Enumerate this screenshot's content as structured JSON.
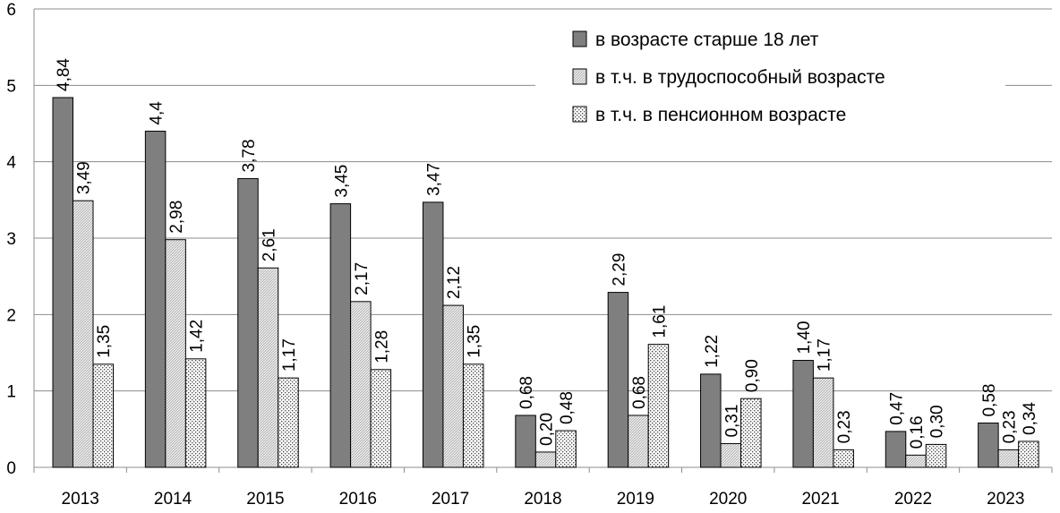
{
  "chart_data": {
    "type": "bar",
    "title": "",
    "xlabel": "",
    "ylabel": "",
    "ylim": [
      0,
      6
    ],
    "yticks": [
      0,
      1,
      2,
      3,
      4,
      5,
      6
    ],
    "grid": true,
    "legend_position": "top-right",
    "categories": [
      "2013",
      "2014",
      "2015",
      "2016",
      "2017",
      "2018",
      "2019",
      "2020",
      "2021",
      "2022",
      "2023"
    ],
    "series": [
      {
        "name": "в возрасте старше 18 лет",
        "fill": "dark-gray",
        "color": "#7f7f7f",
        "values": [
          4.84,
          4.4,
          3.78,
          3.45,
          3.47,
          0.68,
          2.29,
          1.22,
          1.4,
          0.47,
          0.58
        ],
        "labels": [
          "4,84",
          "4,4",
          "3,78",
          "3,45",
          "3,47",
          "0,68",
          "2,29",
          "1,22",
          "1,40",
          "0,47",
          "0,58"
        ]
      },
      {
        "name": "в т.ч. в трудоспособный возрасте",
        "fill": "hatched-gray",
        "color": "#c8c8c8",
        "values": [
          3.49,
          2.98,
          2.61,
          2.17,
          2.12,
          0.2,
          0.68,
          0.31,
          1.17,
          0.16,
          0.23
        ],
        "labels": [
          "3,49",
          "2,98",
          "2,61",
          "2,17",
          "2,12",
          "0,20",
          "0,68",
          "0,31",
          "1,17",
          "0,16",
          "0,23"
        ]
      },
      {
        "name": "в т.ч. в пенсионном возрасте",
        "fill": "dotted-white",
        "color": "#ffffff",
        "values": [
          1.35,
          1.42,
          1.17,
          1.28,
          1.35,
          0.48,
          1.61,
          0.9,
          0.23,
          0.3,
          0.34
        ],
        "labels": [
          "1,35",
          "1,42",
          "1,17",
          "1,28",
          "1,35",
          "0,48",
          "1,61",
          "0,90",
          "0,23",
          "0,30",
          "0,34"
        ]
      }
    ]
  }
}
